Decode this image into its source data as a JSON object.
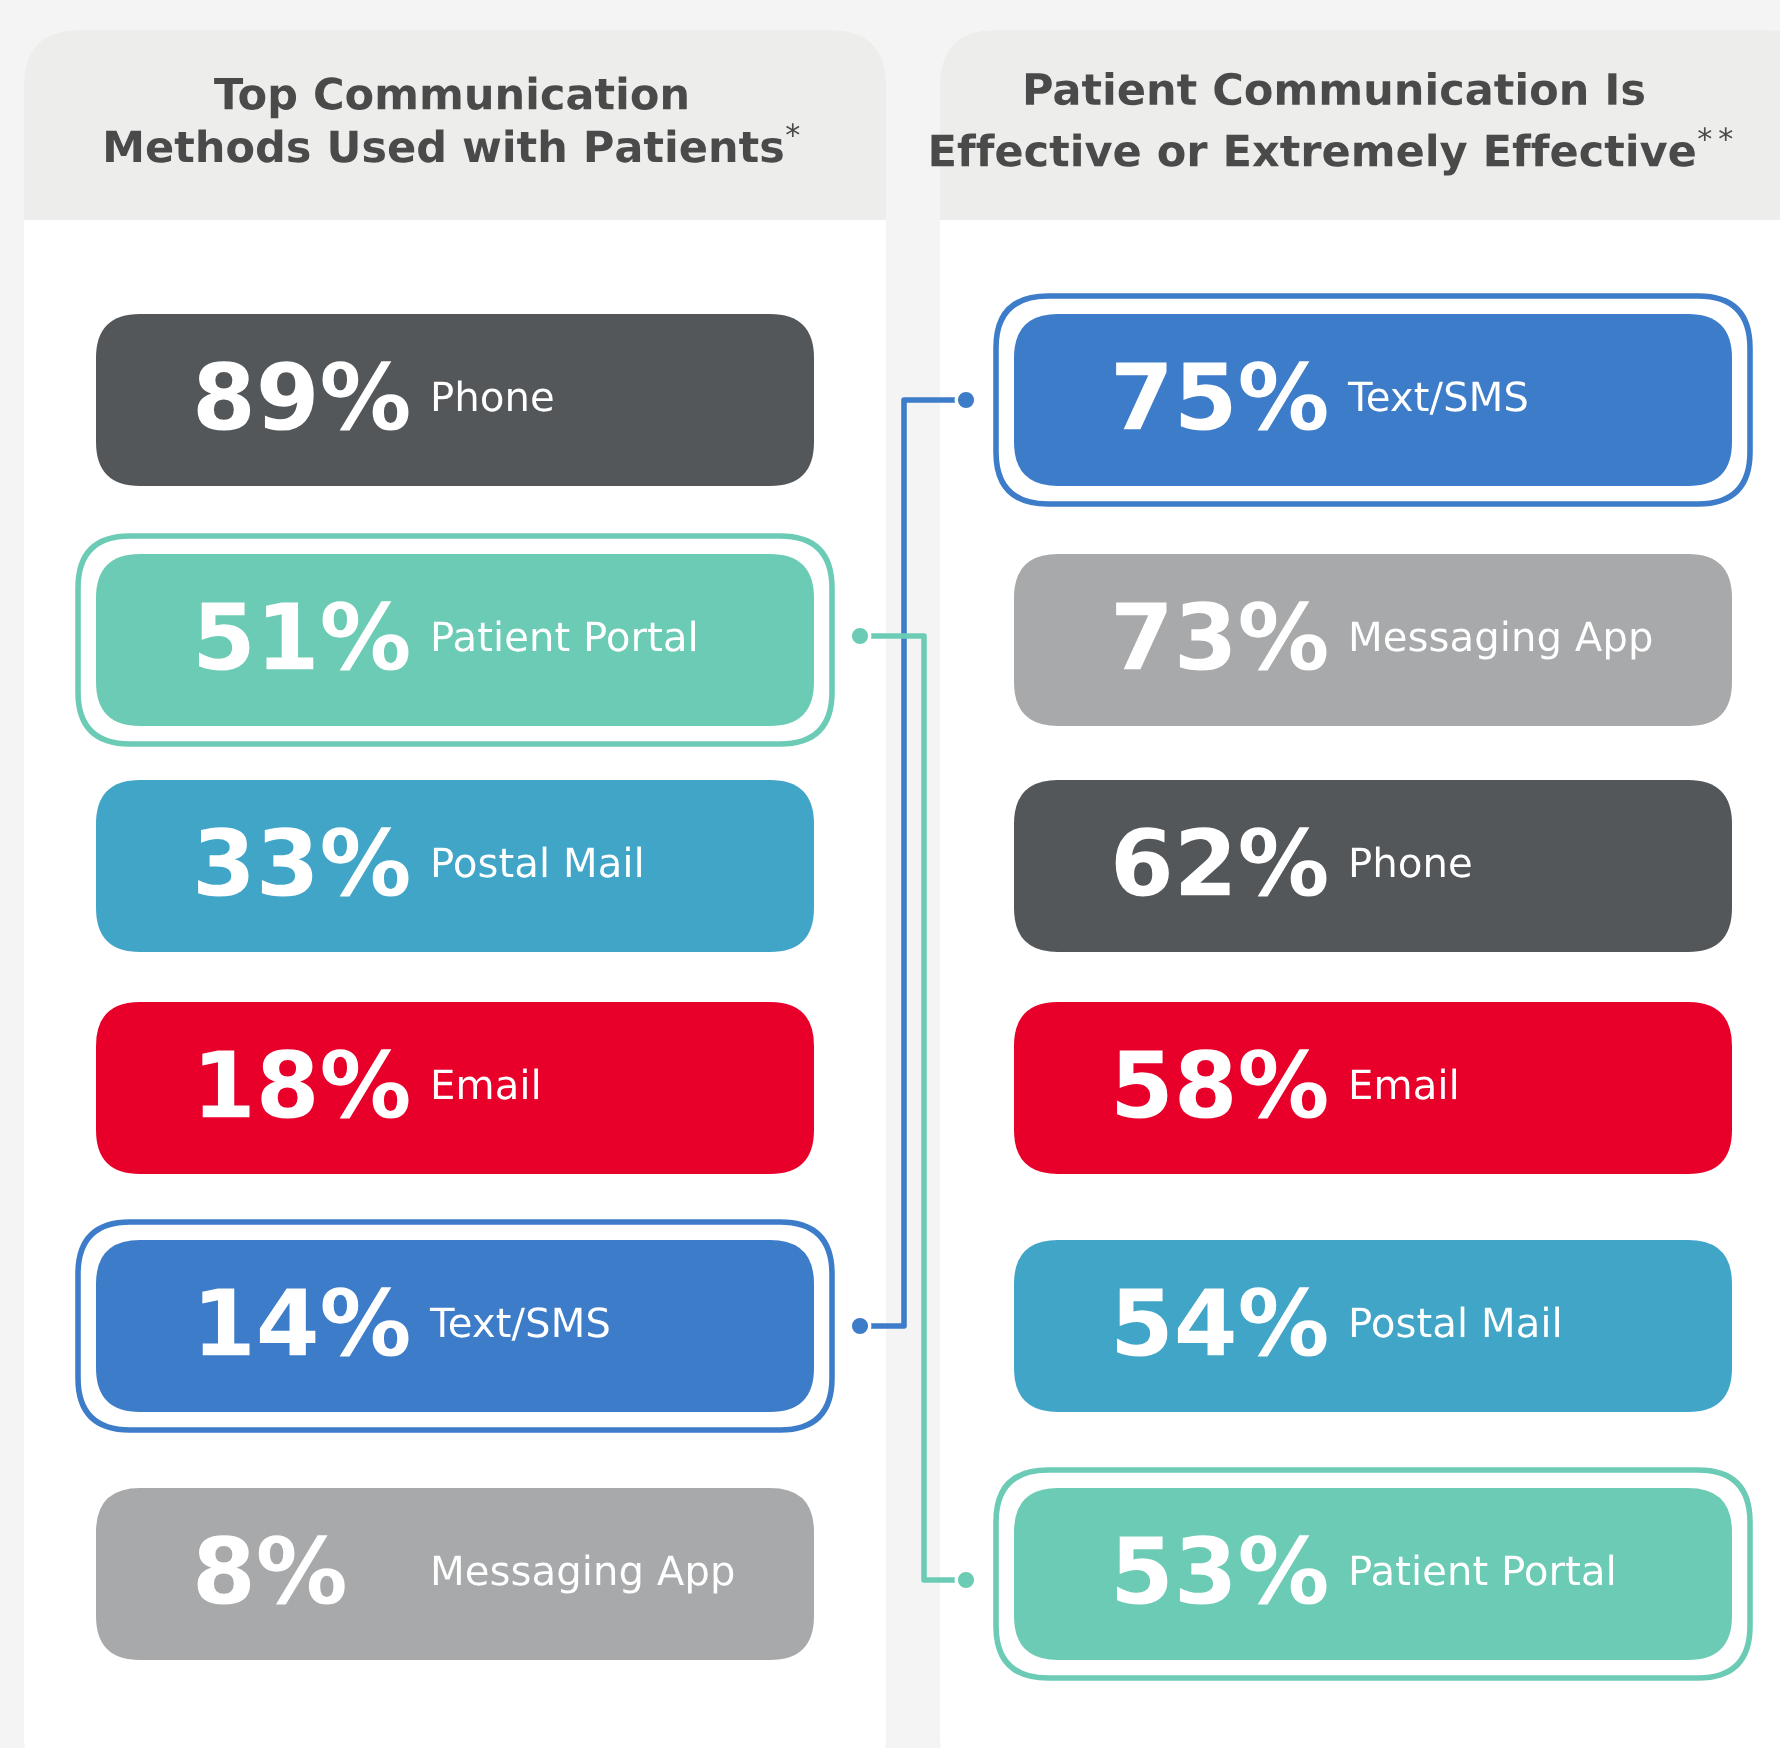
{
  "chart_data": [
    {
      "type": "other",
      "title": "Top Communication\nMethods Used with Patients$^{*}$",
      "categories": [
        "Phone",
        "Patient Portal",
        "Postal Mail",
        "Email",
        "Text/SMS",
        "Messaging App"
      ],
      "values": [
        89,
        51,
        33,
        18,
        14,
        8
      ],
      "value_labels": [
        "89%",
        "51%",
        "33%",
        "18%",
        "14%",
        "8%"
      ],
      "colors": [
        "#53575a",
        "#6ccbb5",
        "#41a5c8",
        "#e8002b",
        "#3d7cc9",
        "#a8a9ab"
      ]
    },
    {
      "type": "other",
      "title": "Patient Communication Is\nEffective or Extremely Effective$^{**}$",
      "categories": [
        "Text/SMS",
        "Messaging App",
        "Phone",
        "Email",
        "Postal Mail",
        "Patient Portal"
      ],
      "values": [
        75,
        73,
        62,
        58,
        54,
        53
      ],
      "value_labels": [
        "75%",
        "73%",
        "62%",
        "58%",
        "54%",
        "53%"
      ],
      "colors": [
        "#3d7cc9",
        "#a8a9ab",
        "#53575a",
        "#e8002b",
        "#41a5c8",
        "#6ccbb5"
      ]
    }
  ]
}
